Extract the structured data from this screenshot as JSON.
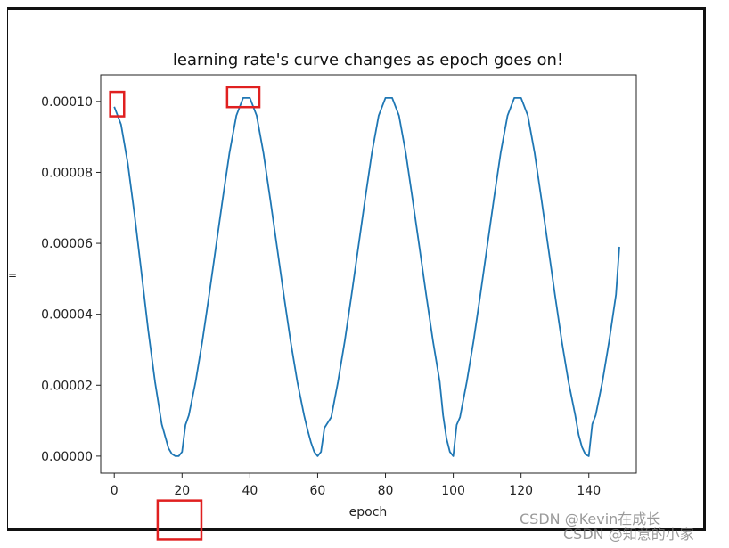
{
  "chart_data": {
    "type": "line",
    "title": "learning rate's curve changes as epoch goes on!",
    "xlabel": "epoch",
    "ylabel": "=",
    "xlim": [
      -4,
      154
    ],
    "ylim": [
      -4.8e-06,
      0.0001075
    ],
    "xticks": [
      0,
      20,
      40,
      60,
      80,
      100,
      120,
      140
    ],
    "xtick_labels": [
      "0",
      "20",
      "40",
      "60",
      "80",
      "100",
      "120",
      "140"
    ],
    "yticks": [
      0,
      2e-05,
      4e-05,
      6e-05,
      8e-05,
      0.0001
    ],
    "ytick_labels": [
      "0.00000",
      "0.00002",
      "0.00004",
      "0.00006",
      "0.00008",
      "0.00010"
    ],
    "grid": false,
    "series_color": "#1f77b4",
    "series": [
      {
        "x": [
          0,
          2,
          4,
          6,
          8,
          10,
          12,
          14,
          16,
          17,
          18,
          19,
          20,
          21,
          22,
          24,
          26,
          28,
          30,
          32,
          34,
          36,
          38,
          40,
          42,
          44,
          46,
          48,
          50,
          52,
          54,
          56,
          57,
          58,
          59,
          60,
          61,
          62,
          64,
          66,
          68,
          70,
          72,
          74,
          76,
          78,
          80,
          82,
          84,
          86,
          88,
          90,
          92,
          94,
          96,
          97,
          98,
          99,
          100,
          101,
          102,
          104,
          106,
          108,
          110,
          112,
          114,
          116,
          118,
          120,
          122,
          124,
          126,
          128,
          130,
          132,
          134,
          136,
          137,
          138,
          139,
          140,
          141,
          142,
          144,
          146,
          148,
          149
        ],
        "y": [
          9.85e-05,
          9.35e-05,
          8.25e-05,
          6.8e-05,
          5.2e-05,
          3.55e-05,
          2.1e-05,
          9e-06,
          2.2e-06,
          6e-07,
          0,
          0,
          1.2e-06,
          8.8e-06,
          1.15e-05,
          2.1e-05,
          3.25e-05,
          4.55e-05,
          5.9e-05,
          7.25e-05,
          8.55e-05,
          9.6e-05,
          0.000101,
          0.000101,
          9.6e-05,
          8.55e-05,
          7.25e-05,
          5.9e-05,
          4.55e-05,
          3.25e-05,
          2.1e-05,
          1.15e-05,
          7.5e-06,
          4e-06,
          1.2e-06,
          0,
          1.2e-06,
          8e-06,
          1.1e-05,
          2.1e-05,
          3.25e-05,
          4.55e-05,
          5.9e-05,
          7.25e-05,
          8.55e-05,
          9.6e-05,
          0.000101,
          0.000101,
          9.6e-05,
          8.55e-05,
          7.25e-05,
          5.9e-05,
          4.55e-05,
          3.25e-05,
          2.1e-05,
          1.15e-05,
          5e-06,
          1.2e-06,
          0,
          8.8e-06,
          1.1e-05,
          2.1e-05,
          3.25e-05,
          4.55e-05,
          5.9e-05,
          7.25e-05,
          8.55e-05,
          9.6e-05,
          0.000101,
          0.000101,
          9.6e-05,
          8.55e-05,
          7.25e-05,
          5.9e-05,
          4.55e-05,
          3.25e-05,
          2.1e-05,
          1.15e-05,
          6e-06,
          2.5e-06,
          5e-07,
          0,
          9e-06,
          1.15e-05,
          2.1e-05,
          3.25e-05,
          4.55e-05,
          5.9e-05
        ]
      }
    ],
    "annotation_boxes": [
      {
        "x": [
          -1.2,
          2.9
        ],
        "y": [
          9.58e-05,
          0.0001027
        ]
      },
      {
        "x": [
          33.3,
          42.8
        ],
        "y": [
          9.84e-05,
          0.000104
        ]
      },
      {
        "x": [
          12.8,
          25.7
        ],
        "y": [
          -1.25e-05,
          -2.35e-05
        ]
      }
    ],
    "annotation_color": "#e02020"
  },
  "watermarks": [
    "CSDN @Kevin在成长",
    "CSDN @知意的小家"
  ]
}
